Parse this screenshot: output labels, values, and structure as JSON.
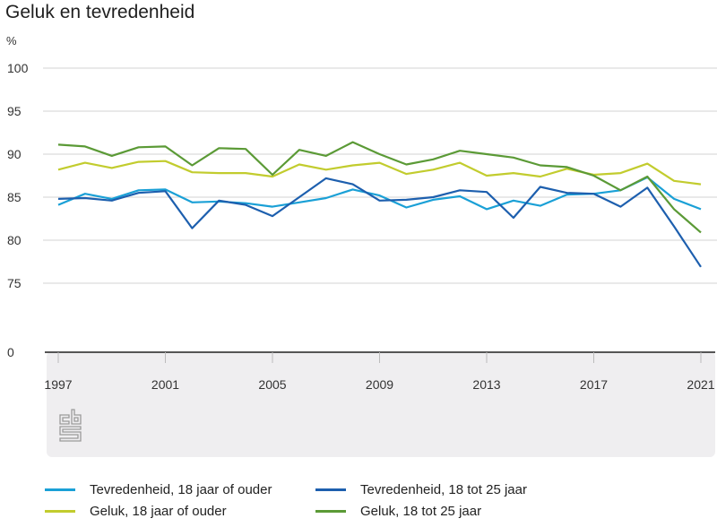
{
  "title": "Geluk en tevredenheid",
  "unit_label": "%",
  "chart_data": {
    "type": "line",
    "title": "Geluk en tevredenheid",
    "xlabel": "",
    "ylabel": "%",
    "x": [
      1997,
      1998,
      1999,
      2000,
      2001,
      2002,
      2003,
      2004,
      2005,
      2006,
      2007,
      2008,
      2009,
      2010,
      2011,
      2012,
      2013,
      2014,
      2015,
      2016,
      2017,
      2018,
      2019,
      2020,
      2021
    ],
    "x_ticks": [
      "1997",
      "2001",
      "2005",
      "2009",
      "2013",
      "2017",
      "2021"
    ],
    "y_ticks": [
      "100",
      "95",
      "90",
      "85",
      "80",
      "75",
      "0"
    ],
    "y_axis_break": "between 0 and 75",
    "ylim": [
      75,
      100
    ],
    "grid": true,
    "legend_position": "bottom",
    "series": [
      {
        "name": "Tevredenheid, 18 jaar of ouder",
        "color": "#1aa0d6",
        "values": [
          84.1,
          85.4,
          84.8,
          85.8,
          85.9,
          84.4,
          84.5,
          84.3,
          83.9,
          84.4,
          84.9,
          85.9,
          85.2,
          83.8,
          84.7,
          85.1,
          83.6,
          84.6,
          84.0,
          85.3,
          85.4,
          85.8,
          87.3,
          84.8,
          83.6
        ]
      },
      {
        "name": "Tevredenheid, 18 tot 25 jaar",
        "color": "#1d5fae",
        "values": [
          84.8,
          84.9,
          84.6,
          85.5,
          85.7,
          81.4,
          84.6,
          84.1,
          82.8,
          85.0,
          87.2,
          86.5,
          84.6,
          84.7,
          85.0,
          85.8,
          85.6,
          82.6,
          86.2,
          85.5,
          85.4,
          83.9,
          86.1,
          81.6,
          76.9
        ]
      },
      {
        "name": "Geluk, 18 jaar of ouder",
        "color": "#c2cc2e",
        "values": [
          88.2,
          89.0,
          88.4,
          89.1,
          89.2,
          87.9,
          87.8,
          87.8,
          87.4,
          88.8,
          88.2,
          88.7,
          89.0,
          87.7,
          88.2,
          89.0,
          87.5,
          87.8,
          87.4,
          88.3,
          87.6,
          87.8,
          88.9,
          86.9,
          86.5
        ]
      },
      {
        "name": "Geluk, 18 tot 25 jaar",
        "color": "#5b9a36",
        "values": [
          91.1,
          90.9,
          89.8,
          90.8,
          90.9,
          88.7,
          90.7,
          90.6,
          87.6,
          90.5,
          89.8,
          91.4,
          90.0,
          88.8,
          89.4,
          90.4,
          90.0,
          89.6,
          88.7,
          88.5,
          87.5,
          85.8,
          87.4,
          83.6,
          80.9
        ]
      }
    ]
  },
  "logo": "cbs-logo"
}
